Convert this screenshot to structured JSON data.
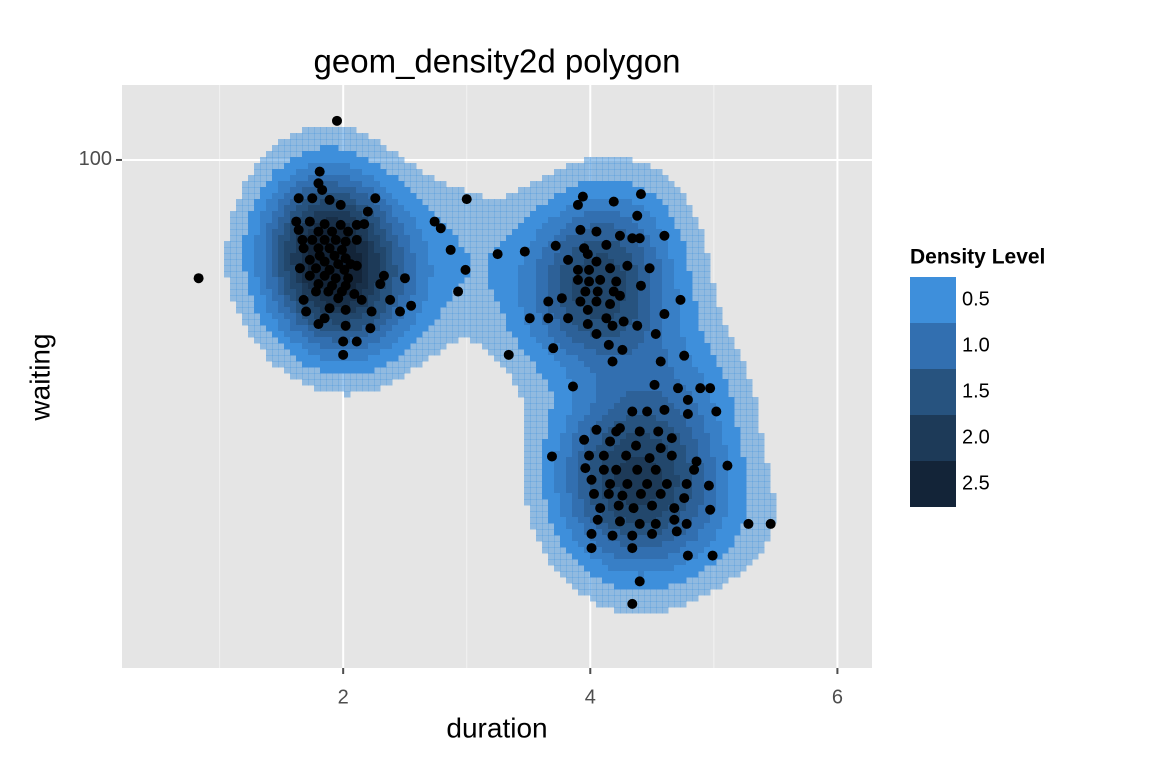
{
  "chart_data": {
    "type": "density2d",
    "title": "geom_density2d polygon",
    "x_label": "duration",
    "y_label": "waiting",
    "xlim": [
      0.21,
      6.28
    ],
    "ylim": [
      39,
      109
    ],
    "xticks": [
      2,
      4,
      6
    ],
    "x_minor_ticks": [
      1,
      3,
      5
    ],
    "yticks": [
      100
    ],
    "grid": true,
    "points": {
      "color": "#000000",
      "x": [
        1.95,
        0.83,
        3.0,
        2.74,
        2.79,
        2.87,
        2.99,
        2.93,
        3.34,
        3.25,
        3.7,
        3.69,
        3.86,
        1.81,
        1.8,
        1.83,
        1.64,
        1.75,
        1.89,
        2.26,
        1.98,
        2.2,
        1.62,
        1.73,
        1.85,
        1.98,
        2.11,
        2.17,
        1.64,
        1.8,
        1.91,
        2.04,
        1.67,
        1.75,
        1.85,
        1.94,
        2.02,
        2.11,
        1.68,
        1.8,
        1.89,
        1.99,
        1.81,
        1.93,
        2.02,
        1.73,
        1.85,
        1.96,
        2.06,
        1.65,
        1.78,
        1.89,
        2.01,
        2.11,
        1.73,
        1.85,
        1.94,
        2.04,
        2.33,
        2.5,
        1.8,
        1.91,
        2.02,
        2.3,
        1.78,
        1.88,
        1.99,
        2.09,
        2.38,
        1.68,
        1.96,
        2.15,
        1.7,
        1.89,
        2.02,
        2.23,
        2.46,
        2.55,
        1.85,
        1.8,
        2.02,
        2.22,
        2.0,
        2.11,
        2.0,
        3.94,
        3.9,
        4.19,
        4.41,
        4.38,
        3.92,
        4.05,
        4.24,
        4.34,
        4.4,
        4.6,
        4.13,
        3.72,
        3.95,
        3.98,
        3.47,
        4.05,
        3.82,
        3.9,
        3.99,
        4.16,
        4.3,
        4.48,
        3.9,
        3.99,
        4.08,
        4.21,
        4.41,
        3.96,
        4.06,
        4.19,
        4.24,
        3.77,
        3.92,
        4.05,
        3.66,
        4.73,
        4.16,
        3.98,
        4.13,
        4.27,
        4.6,
        3.51,
        3.66,
        3.82,
        3.98,
        4.18,
        4.38,
        4.05,
        4.53,
        4.15,
        4.26,
        4.57,
        4.76,
        4.18,
        4.52,
        4.71,
        4.89,
        4.97,
        4.79,
        4.6,
        4.34,
        4.46,
        4.24,
        4.05,
        4.21,
        4.4,
        4.55,
        4.66,
        4.79,
        5.02,
        3.95,
        4.16,
        4.37,
        4.57,
        3.99,
        4.11,
        4.29,
        4.48,
        4.66,
        4.86,
        5.11,
        3.96,
        4.11,
        4.21,
        4.38,
        4.53,
        4.84,
        4.01,
        4.16,
        4.3,
        4.46,
        4.62,
        4.78,
        4.96,
        4.03,
        4.15,
        4.26,
        4.41,
        4.57,
        4.76,
        4.08,
        4.23,
        4.35,
        4.5,
        4.68,
        4.97,
        4.06,
        4.24,
        4.4,
        4.53,
        4.68,
        4.78,
        5.28,
        5.46,
        4.01,
        4.18,
        4.34,
        4.5,
        4.7,
        4.01,
        4.34,
        4.79,
        4.99,
        4.4,
        4.34
      ],
      "y": [
        104.7,
        85.8,
        95.3,
        92.6,
        91.8,
        89.2,
        86.8,
        84.2,
        76.6,
        88.7,
        77.4,
        64.4,
        72.8,
        98.6,
        97.2,
        96.4,
        95.4,
        95.4,
        95.2,
        95.4,
        94.6,
        93.8,
        92.6,
        92.6,
        92.3,
        92.2,
        92.2,
        92.3,
        91.6,
        91.4,
        91.4,
        91.4,
        90.4,
        90.4,
        90.4,
        90.4,
        90.2,
        90.4,
        89.4,
        89.4,
        89.4,
        89.2,
        88.5,
        88.5,
        88.2,
        88.0,
        87.8,
        87.5,
        87.5,
        87.0,
        87.0,
        86.8,
        86.8,
        87.3,
        86.1,
        86.1,
        85.8,
        85.8,
        86.1,
        85.8,
        85.1,
        84.9,
        84.9,
        85.1,
        84.2,
        84.2,
        84.2,
        83.9,
        83.2,
        83.2,
        83.4,
        83.2,
        81.8,
        82.2,
        82.0,
        81.8,
        81.8,
        82.5,
        81.0,
        80.3,
        80.1,
        79.8,
        78.2,
        78.2,
        76.6,
        95.6,
        94.6,
        95.0,
        95.9,
        93.3,
        91.6,
        91.4,
        90.9,
        90.6,
        90.6,
        90.9,
        89.8,
        89.7,
        89.4,
        88.7,
        89.0,
        87.8,
        88.0,
        86.8,
        86.8,
        87.0,
        87.3,
        87.0,
        85.6,
        85.4,
        85.6,
        85.4,
        84.9,
        84.2,
        84.2,
        84.2,
        83.7,
        83.4,
        83.0,
        83.0,
        83.0,
        83.2,
        82.7,
        82.0,
        81.0,
        80.6,
        81.5,
        81.0,
        81.0,
        81.0,
        80.3,
        80.1,
        80.1,
        79.1,
        79.1,
        77.8,
        77.2,
        75.8,
        76.5,
        75.8,
        73.0,
        72.6,
        72.6,
        72.6,
        71.2,
        70.0,
        69.8,
        69.8,
        67.8,
        67.6,
        67.4,
        67.4,
        67.4,
        66.6,
        69.5,
        69.8,
        66.4,
        66.2,
        65.7,
        65.4,
        64.5,
        64.5,
        64.5,
        64.2,
        64.5,
        63.8,
        63.3,
        63.0,
        62.8,
        62.8,
        62.8,
        62.8,
        62.8,
        61.6,
        61.1,
        61.1,
        61.1,
        61.1,
        61.1,
        60.9,
        59.9,
        59.9,
        59.7,
        59.9,
        59.9,
        59.4,
        58.2,
        58.5,
        58.2,
        58.5,
        58.2,
        58.0,
        56.8,
        56.6,
        56.3,
        56.3,
        56.8,
        56.3,
        56.3,
        56.3,
        55.1,
        54.9,
        54.9,
        55.1,
        55.4,
        53.4,
        53.4,
        52.5,
        52.5,
        49.4,
        46.7
      ]
    },
    "legend": {
      "title": "Density Level",
      "breaks": [
        0.5,
        {
          "value": 1,
          "label": "1.0"
        },
        1.5,
        {
          "value": 2,
          "label": "2.0"
        },
        2.5
      ],
      "colors": [
        "#3E8FDB",
        "#326FB0",
        "#27537F",
        "#1D3A58",
        "#132438"
      ]
    }
  }
}
